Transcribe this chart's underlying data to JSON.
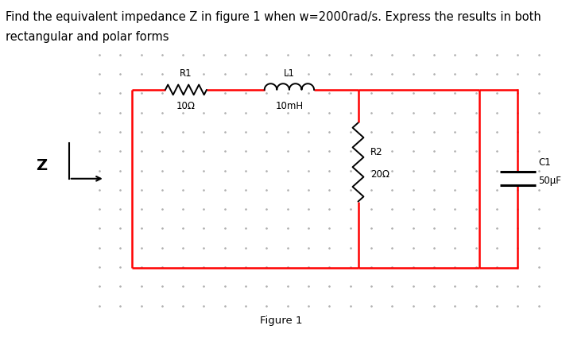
{
  "title_line1": "Find the equivalent impedance Z in figure 1 when w=2000rad/s. Express the results in both",
  "title_line2": "rectangular and polar forms",
  "title_fontsize": 10.5,
  "figure_label": "Figure 1",
  "background_color": "#ffffff",
  "dot_color": "#b0b0b0",
  "circuit_color": "#ff0000",
  "component_color": "#000000",
  "z_label": "Z",
  "r1_label": "R1",
  "r1_value": "10Ω",
  "l1_label": "L1",
  "l1_value": "10mH",
  "r2_label": "R2",
  "r2_value": "20Ω",
  "c1_label": "C1",
  "c1_value": "50μF",
  "circuit_lw": 1.8,
  "comp_lw": 1.4,
  "xlim": [
    0,
    10
  ],
  "ylim": [
    0,
    6.5
  ]
}
